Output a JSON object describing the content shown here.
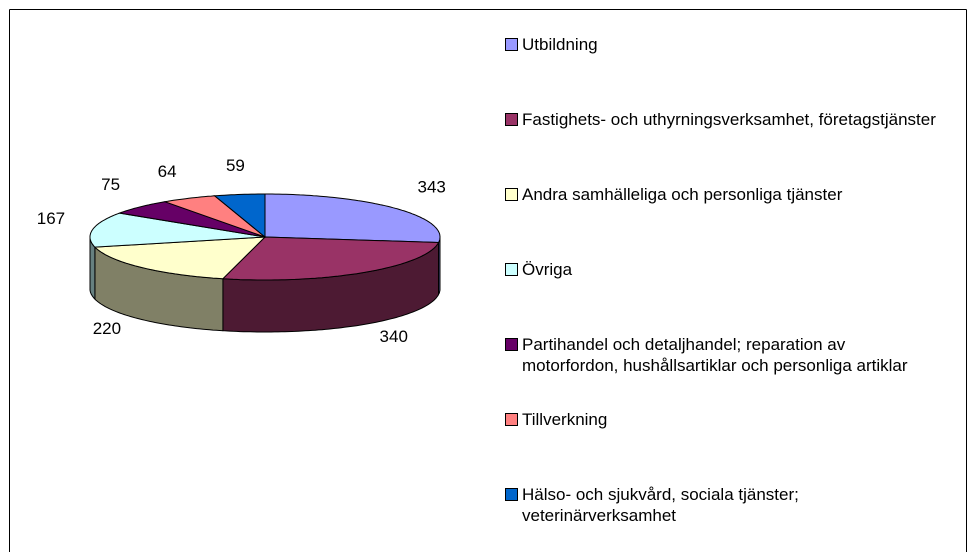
{
  "chart_data": {
    "type": "pie3d",
    "categories": [
      "Utbildning",
      "Fastighets- och uthyrningsverksamhet, företagstjänster",
      "Andra samhälleliga och personliga tjänster",
      "Övriga",
      "Partihandel och detaljhandel; reparation av motorfordon, hushållsartiklar och personliga artiklar",
      "Tillverkning",
      "Hälso- och sjukvård, sociala tjänster; veterinärverksamhet"
    ],
    "values": [
      343,
      340,
      220,
      167,
      75,
      64,
      59
    ],
    "colors": [
      "#9999ff",
      "#993366",
      "#ffffcc",
      "#ccffff",
      "#660066",
      "#ff8080",
      "#0066cc"
    ],
    "legend": "right"
  }
}
